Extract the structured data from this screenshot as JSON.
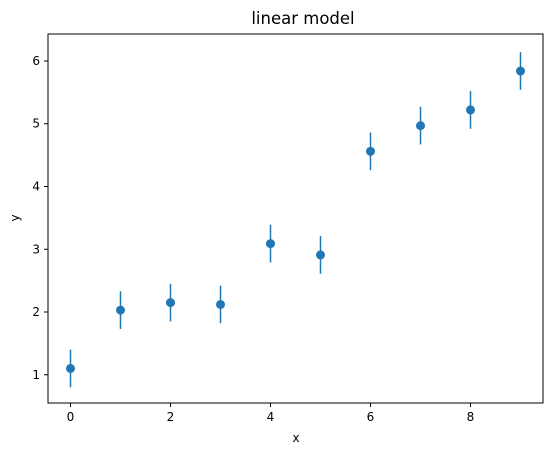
{
  "chart_data": {
    "type": "scatter",
    "title": "linear model",
    "xlabel": "x",
    "ylabel": "y",
    "xlim": [
      -0.45,
      9.45
    ],
    "ylim": [
      0.55,
      6.43
    ],
    "xticks": [
      0,
      2,
      4,
      6,
      8
    ],
    "yticks": [
      1,
      2,
      3,
      4,
      5,
      6
    ],
    "grid": false,
    "color": "#1f77b4",
    "series": [
      {
        "x": [
          0,
          1,
          2,
          3,
          4,
          5,
          6,
          7,
          8,
          9
        ],
        "y": [
          1.1,
          2.03,
          2.15,
          2.12,
          3.09,
          2.91,
          4.56,
          4.97,
          5.22,
          5.84
        ],
        "yerr": [
          0.3,
          0.3,
          0.3,
          0.3,
          0.3,
          0.3,
          0.3,
          0.3,
          0.3,
          0.3
        ]
      }
    ]
  }
}
